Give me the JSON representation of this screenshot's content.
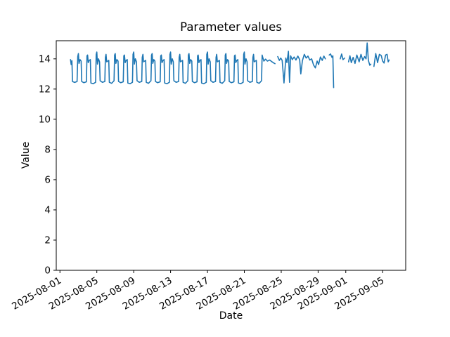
{
  "figure": {
    "background": "#ffffff"
  },
  "chart_data": {
    "type": "line",
    "title": "Parameter values",
    "xlabel": "Date",
    "ylabel": "Value",
    "line_color": "#1f77b4",
    "line_width": 1.6,
    "grid": false,
    "legend": null,
    "ylim": [
      0,
      15.2
    ],
    "yticks": [
      0,
      2,
      4,
      6,
      8,
      10,
      12,
      14
    ],
    "x_epoch": "2025-08-01",
    "xlim_days": [
      -0.4,
      37.5
    ],
    "xticks": [
      {
        "day": 0,
        "label": "2025-08-01"
      },
      {
        "day": 4,
        "label": "2025-08-05"
      },
      {
        "day": 8,
        "label": "2025-08-09"
      },
      {
        "day": 12,
        "label": "2025-08-13"
      },
      {
        "day": 16,
        "label": "2025-08-17"
      },
      {
        "day": 20,
        "label": "2025-08-21"
      },
      {
        "day": 24,
        "label": "2025-08-25"
      },
      {
        "day": 28,
        "label": "2025-08-29"
      },
      {
        "day": 31,
        "label": "2025-09-01"
      },
      {
        "day": 35,
        "label": "2025-09-05"
      }
    ],
    "tick_label_rotation": 30,
    "points": [
      [
        1.15,
        13.95
      ],
      [
        1.22,
        13.62
      ],
      [
        1.3,
        13.88
      ],
      [
        1.36,
        12.5
      ],
      [
        1.6,
        12.44
      ],
      [
        1.86,
        12.5
      ],
      [
        1.93,
        14.15
      ],
      [
        2.0,
        14.35
      ],
      [
        2.07,
        13.7
      ],
      [
        2.18,
        13.95
      ],
      [
        2.3,
        13.85
      ],
      [
        2.36,
        12.5
      ],
      [
        2.6,
        12.42
      ],
      [
        2.87,
        12.48
      ],
      [
        2.93,
        14.2
      ],
      [
        3.0,
        14.25
      ],
      [
        3.07,
        13.75
      ],
      [
        3.18,
        13.9
      ],
      [
        3.3,
        13.95
      ],
      [
        3.36,
        12.4
      ],
      [
        3.6,
        12.35
      ],
      [
        3.87,
        12.45
      ],
      [
        3.93,
        14.3
      ],
      [
        4.0,
        14.45
      ],
      [
        4.07,
        13.65
      ],
      [
        4.18,
        14.0
      ],
      [
        4.3,
        13.8
      ],
      [
        4.36,
        12.55
      ],
      [
        4.6,
        12.45
      ],
      [
        4.87,
        12.5
      ],
      [
        4.93,
        14.1
      ],
      [
        5.0,
        14.3
      ],
      [
        5.07,
        13.8
      ],
      [
        5.18,
        13.85
      ],
      [
        5.3,
        13.9
      ],
      [
        5.36,
        12.45
      ],
      [
        5.6,
        12.38
      ],
      [
        5.87,
        12.55
      ],
      [
        5.93,
        14.25
      ],
      [
        6.0,
        14.35
      ],
      [
        6.07,
        13.7
      ],
      [
        6.18,
        13.95
      ],
      [
        6.3,
        13.85
      ],
      [
        6.36,
        12.5
      ],
      [
        6.6,
        12.42
      ],
      [
        6.87,
        12.48
      ],
      [
        6.93,
        14.2
      ],
      [
        7.0,
        14.25
      ],
      [
        7.07,
        13.75
      ],
      [
        7.18,
        13.9
      ],
      [
        7.3,
        13.95
      ],
      [
        7.36,
        12.4
      ],
      [
        7.6,
        12.35
      ],
      [
        7.87,
        12.45
      ],
      [
        7.93,
        14.3
      ],
      [
        8.0,
        14.45
      ],
      [
        8.07,
        13.65
      ],
      [
        8.18,
        14.0
      ],
      [
        8.3,
        13.8
      ],
      [
        8.36,
        12.55
      ],
      [
        8.6,
        12.45
      ],
      [
        8.87,
        12.5
      ],
      [
        8.93,
        14.1
      ],
      [
        9.0,
        14.3
      ],
      [
        9.07,
        13.8
      ],
      [
        9.18,
        13.85
      ],
      [
        9.3,
        13.9
      ],
      [
        9.36,
        12.45
      ],
      [
        9.6,
        12.38
      ],
      [
        9.87,
        12.55
      ],
      [
        9.93,
        14.25
      ],
      [
        10.0,
        14.35
      ],
      [
        10.07,
        13.7
      ],
      [
        10.18,
        13.95
      ],
      [
        10.3,
        13.85
      ],
      [
        10.36,
        12.5
      ],
      [
        10.6,
        12.42
      ],
      [
        10.87,
        12.48
      ],
      [
        10.93,
        14.2
      ],
      [
        11.0,
        14.25
      ],
      [
        11.07,
        13.75
      ],
      [
        11.18,
        13.9
      ],
      [
        11.3,
        13.95
      ],
      [
        11.36,
        12.4
      ],
      [
        11.6,
        12.35
      ],
      [
        11.87,
        12.45
      ],
      [
        11.93,
        14.3
      ],
      [
        12.0,
        14.45
      ],
      [
        12.07,
        13.65
      ],
      [
        12.18,
        14.0
      ],
      [
        12.3,
        13.8
      ],
      [
        12.36,
        12.55
      ],
      [
        12.6,
        12.45
      ],
      [
        12.87,
        12.5
      ],
      [
        12.93,
        14.1
      ],
      [
        13.0,
        14.3
      ],
      [
        13.07,
        13.8
      ],
      [
        13.18,
        13.85
      ],
      [
        13.3,
        13.9
      ],
      [
        13.36,
        12.45
      ],
      [
        13.6,
        12.38
      ],
      [
        13.87,
        12.55
      ],
      [
        13.93,
        14.25
      ],
      [
        14.0,
        14.35
      ],
      [
        14.07,
        13.7
      ],
      [
        14.18,
        13.95
      ],
      [
        14.3,
        13.85
      ],
      [
        14.36,
        12.5
      ],
      [
        14.6,
        12.42
      ],
      [
        14.87,
        12.48
      ],
      [
        14.93,
        14.2
      ],
      [
        15.0,
        14.25
      ],
      [
        15.07,
        13.75
      ],
      [
        15.18,
        13.9
      ],
      [
        15.3,
        13.95
      ],
      [
        15.36,
        12.4
      ],
      [
        15.6,
        12.35
      ],
      [
        15.87,
        12.45
      ],
      [
        15.93,
        14.3
      ],
      [
        16.0,
        14.45
      ],
      [
        16.07,
        13.65
      ],
      [
        16.18,
        14.0
      ],
      [
        16.3,
        13.8
      ],
      [
        16.36,
        12.55
      ],
      [
        16.6,
        12.45
      ],
      [
        16.87,
        12.5
      ],
      [
        16.93,
        14.1
      ],
      [
        17.0,
        14.3
      ],
      [
        17.07,
        13.8
      ],
      [
        17.18,
        13.85
      ],
      [
        17.3,
        13.9
      ],
      [
        17.36,
        12.45
      ],
      [
        17.6,
        12.38
      ],
      [
        17.87,
        12.55
      ],
      [
        17.93,
        14.25
      ],
      [
        18.0,
        14.35
      ],
      [
        18.07,
        13.7
      ],
      [
        18.18,
        13.95
      ],
      [
        18.3,
        13.85
      ],
      [
        18.36,
        12.5
      ],
      [
        18.6,
        12.42
      ],
      [
        18.87,
        12.48
      ],
      [
        18.93,
        14.2
      ],
      [
        19.0,
        14.25
      ],
      [
        19.07,
        13.75
      ],
      [
        19.18,
        13.9
      ],
      [
        19.3,
        13.95
      ],
      [
        19.36,
        12.4
      ],
      [
        19.6,
        12.35
      ],
      [
        19.87,
        12.45
      ],
      [
        19.93,
        14.3
      ],
      [
        20.0,
        14.45
      ],
      [
        20.07,
        13.65
      ],
      [
        20.18,
        14.0
      ],
      [
        20.3,
        13.8
      ],
      [
        20.36,
        12.55
      ],
      [
        20.6,
        12.45
      ],
      [
        20.87,
        12.5
      ],
      [
        20.93,
        14.1
      ],
      [
        21.0,
        14.3
      ],
      [
        21.07,
        13.8
      ],
      [
        21.18,
        13.85
      ],
      [
        21.3,
        13.9
      ],
      [
        21.36,
        12.45
      ],
      [
        21.6,
        12.38
      ],
      [
        21.87,
        12.55
      ],
      [
        21.93,
        14.25
      ],
      [
        22.0,
        14.1
      ],
      [
        22.12,
        13.85
      ],
      [
        22.3,
        13.98
      ],
      [
        22.5,
        13.85
      ],
      [
        22.75,
        13.92
      ],
      [
        23.0,
        13.8
      ],
      [
        23.2,
        13.72
      ],
      [
        23.32,
        13.68
      ],
      null,
      [
        23.62,
        14.15
      ],
      [
        23.8,
        13.9
      ],
      [
        23.95,
        14.05
      ],
      [
        24.1,
        13.9
      ],
      [
        24.3,
        12.4
      ],
      [
        24.5,
        14.05
      ],
      [
        24.62,
        13.75
      ],
      [
        24.78,
        14.5
      ],
      [
        24.9,
        12.45
      ],
      [
        25.02,
        14.2
      ],
      [
        25.2,
        13.95
      ],
      [
        25.4,
        14.12
      ],
      [
        25.6,
        13.92
      ],
      [
        25.8,
        14.18
      ],
      [
        26.0,
        13.95
      ],
      [
        26.12,
        13.0
      ],
      [
        26.3,
        13.88
      ],
      [
        26.5,
        14.3
      ],
      [
        26.7,
        14.05
      ],
      [
        26.9,
        14.18
      ],
      [
        27.1,
        13.92
      ],
      [
        27.3,
        14.0
      ],
      [
        27.5,
        13.6
      ],
      [
        27.7,
        13.4
      ],
      [
        27.9,
        13.85
      ],
      [
        28.05,
        13.62
      ],
      [
        28.25,
        14.12
      ],
      [
        28.45,
        13.9
      ],
      [
        28.62,
        14.18
      ],
      [
        28.78,
        14.0
      ],
      null,
      [
        29.2,
        14.25
      ],
      [
        29.35,
        14.32
      ],
      [
        29.5,
        14.1
      ],
      [
        29.6,
        14.2
      ],
      [
        29.68,
        12.1
      ],
      null,
      [
        30.4,
        14.0
      ],
      [
        30.55,
        14.32
      ],
      [
        30.7,
        13.95
      ],
      [
        30.88,
        14.05
      ],
      null,
      [
        31.3,
        13.8
      ],
      [
        31.45,
        14.2
      ],
      [
        31.6,
        13.75
      ],
      [
        31.8,
        14.1
      ],
      [
        32.0,
        13.7
      ],
      [
        32.2,
        14.25
      ],
      [
        32.45,
        13.8
      ],
      [
        32.65,
        14.3
      ],
      [
        32.85,
        13.9
      ],
      [
        33.05,
        14.15
      ],
      [
        33.2,
        14.0
      ],
      [
        33.32,
        15.05
      ],
      [
        33.45,
        13.9
      ],
      [
        33.6,
        13.58
      ],
      [
        33.72,
        13.65
      ],
      null,
      [
        34.05,
        13.5
      ],
      [
        34.25,
        14.35
      ],
      [
        34.45,
        13.75
      ],
      [
        34.65,
        14.3
      ],
      [
        34.85,
        14.22
      ],
      [
        35.0,
        13.85
      ],
      [
        35.15,
        13.72
      ],
      [
        35.32,
        14.25
      ],
      [
        35.48,
        14.3
      ],
      [
        35.6,
        13.8
      ],
      [
        35.7,
        13.92
      ]
    ]
  }
}
